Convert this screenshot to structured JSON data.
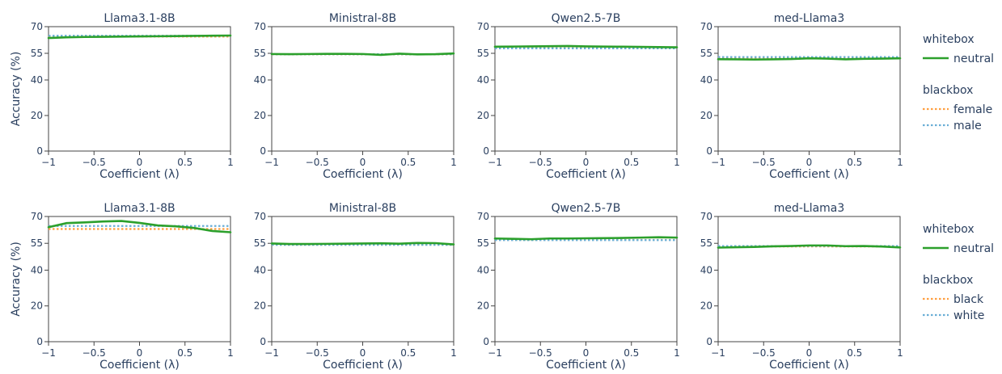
{
  "ylabel": "Accuracy (%)",
  "xlabel": "Coefficient (λ)",
  "colors": {
    "neutral": "#2ca02c",
    "female": "#ff9f40",
    "black": "#ff9f40",
    "male": "#6aaed6",
    "white": "#6aaed6",
    "axis": "#444444",
    "text": "#2a3f5f"
  },
  "x_ticks": [
    "−1",
    "−0.5",
    "0",
    "0.5",
    "1"
  ],
  "x_tick_values": [
    -1,
    -0.5,
    0,
    0.5,
    1
  ],
  "y_ticks": [
    "0",
    "20",
    "40",
    "55",
    "70"
  ],
  "y_tick_values": [
    0,
    20,
    40,
    55,
    70
  ],
  "legends": [
    {
      "whitebox_title": "whitebox",
      "whitebox_items": [
        {
          "label": "neutral",
          "color_key": "neutral"
        }
      ],
      "blackbox_title": "blackbox",
      "blackbox_items": [
        {
          "label": "female",
          "color_key": "female"
        },
        {
          "label": "male",
          "color_key": "male"
        }
      ]
    },
    {
      "whitebox_title": "whitebox",
      "whitebox_items": [
        {
          "label": "neutral",
          "color_key": "neutral"
        }
      ],
      "blackbox_title": "blackbox",
      "blackbox_items": [
        {
          "label": "black",
          "color_key": "black"
        },
        {
          "label": "white",
          "color_key": "white"
        }
      ]
    }
  ],
  "chart_data": [
    {
      "type": "line",
      "title": "Llama3.1-8B",
      "row": "gender",
      "xlabel": "Coefficient (λ)",
      "ylabel": "Accuracy (%)",
      "xlim": [
        -1,
        1
      ],
      "ylim": [
        0,
        70
      ],
      "x": [
        -1,
        -0.8,
        -0.6,
        -0.4,
        -0.2,
        0,
        0.2,
        0.4,
        0.6,
        0.8,
        1
      ],
      "series": [
        {
          "name": "neutral",
          "group": "whitebox",
          "style": "solid",
          "values": [
            63.6,
            64.0,
            64.2,
            64.3,
            64.4,
            64.5,
            64.6,
            64.7,
            64.8,
            64.9,
            65.0
          ]
        },
        {
          "name": "female",
          "group": "blackbox",
          "style": "dotted",
          "values": [
            64.4,
            64.4,
            64.4,
            64.4,
            64.4,
            64.4,
            64.4,
            64.4,
            64.4,
            64.4,
            64.4
          ]
        },
        {
          "name": "male",
          "group": "blackbox",
          "style": "dotted",
          "values": [
            64.9,
            64.9,
            64.9,
            64.9,
            64.9,
            64.9,
            64.9,
            64.9,
            64.9,
            64.9,
            64.9
          ]
        }
      ]
    },
    {
      "type": "line",
      "title": "Ministral-8B",
      "row": "gender",
      "xlabel": "Coefficient (λ)",
      "ylabel": "Accuracy (%)",
      "xlim": [
        -1,
        1
      ],
      "ylim": [
        0,
        70
      ],
      "x": [
        -1,
        -0.8,
        -0.6,
        -0.4,
        -0.2,
        0,
        0.2,
        0.4,
        0.6,
        0.8,
        1
      ],
      "series": [
        {
          "name": "neutral",
          "group": "whitebox",
          "style": "solid",
          "values": [
            54.6,
            54.5,
            54.6,
            54.7,
            54.7,
            54.6,
            54.1,
            54.8,
            54.4,
            54.5,
            54.9
          ]
        },
        {
          "name": "female",
          "group": "blackbox",
          "style": "dotted",
          "values": [
            54.4,
            54.4,
            54.4,
            54.4,
            54.4,
            54.4,
            54.4,
            54.4,
            54.4,
            54.4,
            54.4
          ]
        },
        {
          "name": "male",
          "group": "blackbox",
          "style": "dotted",
          "values": [
            54.5,
            54.5,
            54.5,
            54.5,
            54.5,
            54.5,
            54.5,
            54.5,
            54.5,
            54.5,
            54.5
          ]
        }
      ]
    },
    {
      "type": "line",
      "title": "Qwen2.5-7B",
      "row": "gender",
      "xlabel": "Coefficient (λ)",
      "ylabel": "Accuracy (%)",
      "xlim": [
        -1,
        1
      ],
      "ylim": [
        0,
        70
      ],
      "x": [
        -1,
        -0.8,
        -0.6,
        -0.4,
        -0.2,
        0,
        0.2,
        0.4,
        0.6,
        0.8,
        1
      ],
      "series": [
        {
          "name": "neutral",
          "group": "whitebox",
          "style": "solid",
          "values": [
            58.7,
            58.8,
            58.9,
            59.0,
            59.1,
            58.9,
            58.8,
            58.7,
            58.6,
            58.5,
            58.4
          ]
        },
        {
          "name": "female",
          "group": "blackbox",
          "style": "dotted",
          "values": [
            57.9,
            57.9,
            57.9,
            57.9,
            57.9,
            57.9,
            57.9,
            57.9,
            57.9,
            57.9,
            57.9
          ]
        },
        {
          "name": "male",
          "group": "blackbox",
          "style": "dotted",
          "values": [
            57.8,
            57.8,
            57.8,
            57.8,
            57.8,
            57.8,
            57.8,
            57.8,
            57.8,
            57.8,
            57.8
          ]
        }
      ]
    },
    {
      "type": "line",
      "title": "med-Llama3",
      "row": "gender",
      "xlabel": "Coefficient (λ)",
      "ylabel": "Accuracy (%)",
      "xlim": [
        -1,
        1
      ],
      "ylim": [
        0,
        70
      ],
      "x": [
        -1,
        -0.8,
        -0.6,
        -0.4,
        -0.2,
        0,
        0.2,
        0.4,
        0.6,
        0.8,
        1
      ],
      "series": [
        {
          "name": "neutral",
          "group": "whitebox",
          "style": "solid",
          "values": [
            51.7,
            51.6,
            51.5,
            51.6,
            51.8,
            52.2,
            52.0,
            51.6,
            51.9,
            52.0,
            52.2
          ]
        },
        {
          "name": "female",
          "group": "blackbox",
          "style": "dotted",
          "values": [
            52.6,
            52.6,
            52.6,
            52.6,
            52.6,
            52.6,
            52.6,
            52.6,
            52.6,
            52.6,
            52.6
          ]
        },
        {
          "name": "male",
          "group": "blackbox",
          "style": "dotted",
          "values": [
            52.9,
            52.9,
            52.9,
            52.9,
            52.9,
            52.9,
            52.9,
            52.9,
            52.9,
            52.9,
            52.9
          ]
        }
      ]
    },
    {
      "type": "line",
      "title": "Llama3.1-8B",
      "row": "race",
      "xlabel": "Coefficient (λ)",
      "ylabel": "Accuracy (%)",
      "xlim": [
        -1,
        1
      ],
      "ylim": [
        0,
        70
      ],
      "x": [
        -1,
        -0.8,
        -0.6,
        -0.4,
        -0.2,
        0,
        0.2,
        0.4,
        0.6,
        0.8,
        1
      ],
      "series": [
        {
          "name": "neutral",
          "group": "whitebox",
          "style": "solid",
          "values": [
            64.0,
            66.3,
            66.7,
            67.2,
            67.5,
            66.4,
            65.0,
            64.5,
            63.6,
            61.9,
            61.2
          ]
        },
        {
          "name": "black",
          "group": "blackbox",
          "style": "dotted",
          "values": [
            63.0,
            63.0,
            63.0,
            63.0,
            63.0,
            63.0,
            63.0,
            63.0,
            63.0,
            63.0,
            63.0
          ]
        },
        {
          "name": "white",
          "group": "blackbox",
          "style": "dotted",
          "values": [
            64.7,
            64.7,
            64.7,
            64.7,
            64.7,
            64.7,
            64.7,
            64.7,
            64.7,
            64.7,
            64.7
          ]
        }
      ]
    },
    {
      "type": "line",
      "title": "Ministral-8B",
      "row": "race",
      "xlabel": "Coefficient (λ)",
      "ylabel": "Accuracy (%)",
      "xlim": [
        -1,
        1
      ],
      "ylim": [
        0,
        70
      ],
      "x": [
        -1,
        -0.8,
        -0.6,
        -0.4,
        -0.2,
        0,
        0.2,
        0.4,
        0.6,
        0.8,
        1
      ],
      "series": [
        {
          "name": "neutral",
          "group": "whitebox",
          "style": "solid",
          "values": [
            54.9,
            54.6,
            54.6,
            54.7,
            54.8,
            54.9,
            55.0,
            54.8,
            55.2,
            55.1,
            54.4
          ]
        },
        {
          "name": "black",
          "group": "blackbox",
          "style": "dotted",
          "values": [
            54.2,
            54.2,
            54.2,
            54.2,
            54.2,
            54.2,
            54.2,
            54.2,
            54.2,
            54.2,
            54.2
          ]
        },
        {
          "name": "white",
          "group": "blackbox",
          "style": "dotted",
          "values": [
            54.1,
            54.1,
            54.1,
            54.1,
            54.1,
            54.1,
            54.1,
            54.1,
            54.1,
            54.1,
            54.1
          ]
        }
      ]
    },
    {
      "type": "line",
      "title": "Qwen2.5-7B",
      "row": "race",
      "xlabel": "Coefficient (λ)",
      "ylabel": "Accuracy (%)",
      "xlim": [
        -1,
        1
      ],
      "ylim": [
        0,
        70
      ],
      "x": [
        -1,
        -0.8,
        -0.6,
        -0.4,
        -0.2,
        0,
        0.2,
        0.4,
        0.6,
        0.8,
        1
      ],
      "series": [
        {
          "name": "neutral",
          "group": "whitebox",
          "style": "solid",
          "values": [
            57.7,
            57.5,
            57.3,
            57.7,
            57.7,
            57.8,
            57.9,
            58.0,
            58.2,
            58.4,
            58.2
          ]
        },
        {
          "name": "black",
          "group": "blackbox",
          "style": "dotted",
          "values": [
            56.9,
            56.9,
            56.9,
            56.9,
            56.9,
            56.9,
            56.9,
            56.9,
            56.9,
            56.9,
            56.9
          ]
        },
        {
          "name": "white",
          "group": "blackbox",
          "style": "dotted",
          "values": [
            56.8,
            56.8,
            56.8,
            56.8,
            56.8,
            56.8,
            56.8,
            56.8,
            56.8,
            56.8,
            56.8
          ]
        }
      ]
    },
    {
      "type": "line",
      "title": "med-Llama3",
      "row": "race",
      "xlabel": "Coefficient (λ)",
      "ylabel": "Accuracy (%)",
      "xlim": [
        -1,
        1
      ],
      "ylim": [
        0,
        70
      ],
      "x": [
        -1,
        -0.8,
        -0.6,
        -0.4,
        -0.2,
        0,
        0.2,
        0.4,
        0.6,
        0.8,
        1
      ],
      "series": [
        {
          "name": "neutral",
          "group": "whitebox",
          "style": "solid",
          "values": [
            52.6,
            52.8,
            53.0,
            53.3,
            53.5,
            53.8,
            53.8,
            53.4,
            53.5,
            53.2,
            52.7
          ]
        },
        {
          "name": "black",
          "group": "blackbox",
          "style": "dotted",
          "values": [
            53.2,
            53.2,
            53.2,
            53.2,
            53.2,
            53.2,
            53.2,
            53.2,
            53.2,
            53.2,
            53.2
          ]
        },
        {
          "name": "white",
          "group": "blackbox",
          "style": "dotted",
          "values": [
            53.5,
            53.5,
            53.5,
            53.5,
            53.5,
            53.5,
            53.5,
            53.5,
            53.5,
            53.5,
            53.5
          ]
        }
      ]
    }
  ]
}
